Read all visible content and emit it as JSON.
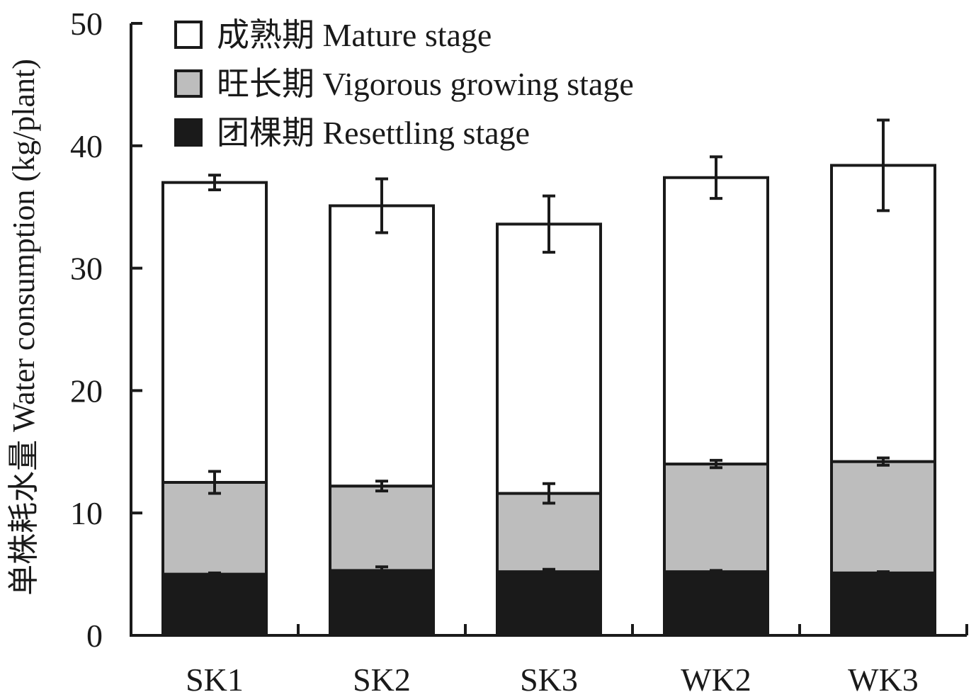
{
  "chart_data": {
    "type": "bar",
    "stacked": true,
    "categories": [
      "SK1",
      "SK2",
      "SK3",
      "WK2",
      "WK3"
    ],
    "series": [
      {
        "name": "团棵期 Resettling stage",
        "values": [
          5.0,
          5.3,
          5.2,
          5.2,
          5.1
        ],
        "errors": [
          0.1,
          0.3,
          0.2,
          0.1,
          0.1
        ],
        "color": "#1a1a1a"
      },
      {
        "name": "旺长期 Vigorous growing stage",
        "values": [
          7.5,
          6.9,
          6.4,
          8.8,
          9.1
        ],
        "errors": [
          0.9,
          0.4,
          0.8,
          0.3,
          0.3
        ],
        "color": "#bdbdbd"
      },
      {
        "name": "成熟期 Mature stage",
        "values": [
          24.5,
          22.9,
          22.0,
          23.4,
          24.2
        ],
        "errors": [
          0.6,
          2.2,
          2.3,
          1.7,
          3.7
        ],
        "color": "#ffffff"
      }
    ],
    "xlabel": "",
    "ylabel": "单株耗水量 Water consumption (kg/plant)",
    "ylim": [
      0,
      50
    ],
    "yticks": [
      0,
      10,
      20,
      30,
      40,
      50
    ],
    "grid": false,
    "legend_position": "top-left"
  }
}
